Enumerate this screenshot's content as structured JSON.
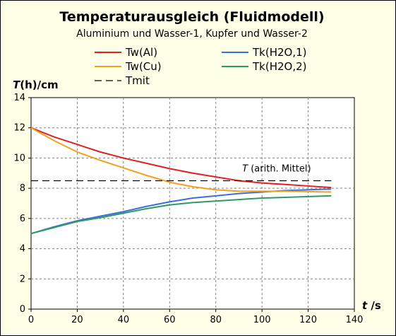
{
  "chart_data": {
    "type": "line",
    "title": "Temperaturausgleich (Fluidmodell)",
    "subtitle": "Aluminium und Wasser-1, Kupfer und Wasser-2",
    "ylabel_italic": "T",
    "ylabel_rest": "(h)/cm",
    "xlabel_italic": "t",
    "xlabel_rest": " /s",
    "xlim": [
      0,
      140
    ],
    "ylim": [
      0,
      14
    ],
    "xticks": [
      0,
      20,
      40,
      60,
      80,
      100,
      120,
      140
    ],
    "yticks": [
      0,
      2,
      4,
      6,
      8,
      10,
      12,
      14
    ],
    "grid": true,
    "legend_position": "top",
    "series": [
      {
        "name": "Tw(Al)",
        "color": "#e0201e",
        "x": [
          0,
          10,
          20,
          30,
          40,
          50,
          60,
          70,
          80,
          90,
          100,
          110,
          120,
          130
        ],
        "y": [
          12,
          11.4,
          10.9,
          10.4,
          10.0,
          9.65,
          9.3,
          9.0,
          8.75,
          8.5,
          8.35,
          8.25,
          8.15,
          8.05
        ]
      },
      {
        "name": "Tk(H2O,1)",
        "color": "#3a6fd8",
        "x": [
          0,
          10,
          20,
          30,
          40,
          50,
          60,
          70,
          80,
          90,
          100,
          110,
          120,
          130
        ],
        "y": [
          5,
          5.45,
          5.85,
          6.15,
          6.45,
          6.8,
          7.1,
          7.35,
          7.5,
          7.65,
          7.75,
          7.85,
          7.9,
          7.95
        ]
      },
      {
        "name": "Tw(Cu)",
        "color": "#f0a020",
        "x": [
          0,
          10,
          20,
          30,
          40,
          50,
          60,
          70,
          80,
          90,
          100,
          110,
          120,
          130
        ],
        "y": [
          12,
          11.15,
          10.4,
          9.85,
          9.35,
          8.85,
          8.4,
          8.1,
          7.9,
          7.8,
          7.8,
          7.8,
          7.78,
          7.75
        ]
      },
      {
        "name": "Tk(H2O,2)",
        "color": "#2f9a60",
        "x": [
          0,
          10,
          20,
          30,
          40,
          50,
          60,
          70,
          80,
          90,
          100,
          110,
          120,
          130
        ],
        "y": [
          5,
          5.4,
          5.8,
          6.05,
          6.35,
          6.65,
          6.9,
          7.05,
          7.15,
          7.25,
          7.35,
          7.4,
          7.45,
          7.5
        ]
      },
      {
        "name": "Tmit",
        "color": "#000000",
        "dashed": true,
        "x": [
          0,
          130
        ],
        "y": [
          8.5,
          8.5
        ]
      }
    ],
    "annotation": {
      "italic": "T",
      "text": " (arith. Mittel)",
      "x": 100,
      "y": 9.3
    }
  },
  "colors": {
    "background": "#ffffe8",
    "plot_background": "#ffffff",
    "grid": "#808080",
    "border": "#000000"
  }
}
